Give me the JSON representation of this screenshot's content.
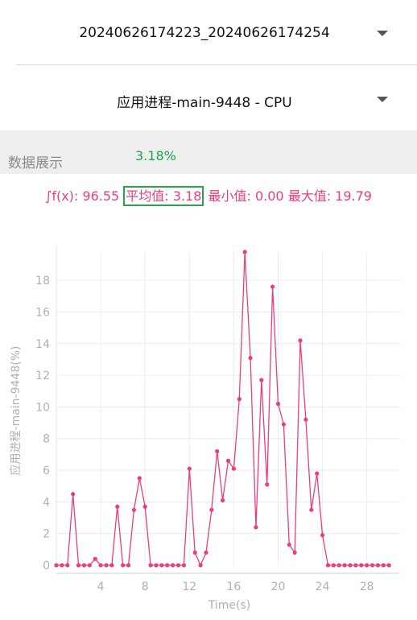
{
  "selectors": {
    "session": {
      "value": "20240626174223_20240626174254"
    },
    "metric": {
      "value": "应用进程-main-9448 - CPU"
    }
  },
  "section": {
    "label": "数据展示",
    "value": "3.18%"
  },
  "stats": {
    "integral": "∫f(x): 96.55",
    "average": "平均值: 3.18",
    "min": "最小值: 0.00",
    "max": "最大值: 19.79"
  },
  "colors": {
    "accent": "#e83e7d",
    "green": "#1aa64b",
    "axis_text": "#b0b0b0"
  },
  "chart_data": {
    "type": "line",
    "ylabel": "应用进程-main-9448(%)",
    "xlabel": "Time(s)",
    "xlim": [
      0,
      31
    ],
    "ylim": [
      0,
      19.79
    ],
    "xticks": [
      4,
      8,
      12,
      16,
      20,
      24,
      28
    ],
    "yticks": [
      0,
      2,
      4,
      6,
      8,
      10,
      12,
      14,
      16,
      18
    ],
    "grid": true,
    "series": [
      {
        "color": "#e83e7d",
        "x": [
          0,
          0.5,
          1,
          1.5,
          2,
          2.5,
          3,
          3.5,
          4,
          4.5,
          5,
          5.5,
          6,
          6.5,
          7,
          7.5,
          8,
          8.5,
          9,
          9.5,
          10,
          10.5,
          11,
          11.5,
          12,
          12.5,
          13,
          13.5,
          14,
          14.5,
          15,
          15.5,
          16,
          16.5,
          17,
          17.5,
          18,
          18.5,
          19,
          19.5,
          20,
          20.5,
          21,
          21.5,
          22,
          22.5,
          23,
          23.5,
          24,
          24.5,
          25,
          25.5,
          26,
          26.5,
          27,
          27.5,
          28,
          28.5,
          29,
          29.5,
          30
        ],
        "y": [
          0,
          0,
          0,
          4.5,
          0,
          0,
          0,
          0.4,
          0,
          0,
          0,
          3.7,
          0,
          0,
          3.5,
          5.5,
          3.7,
          0,
          0,
          0,
          0,
          0,
          0,
          0,
          6.1,
          0.8,
          0,
          0.8,
          3.5,
          7.2,
          4.1,
          6.6,
          6.1,
          10.5,
          19.79,
          13.1,
          2.4,
          11.7,
          5.1,
          17.6,
          10.2,
          8.9,
          1.3,
          0.8,
          14.2,
          9.2,
          3.5,
          5.8,
          1.9,
          0,
          0,
          0,
          0,
          0,
          0,
          0,
          0,
          0,
          0,
          0,
          0
        ]
      }
    ]
  }
}
